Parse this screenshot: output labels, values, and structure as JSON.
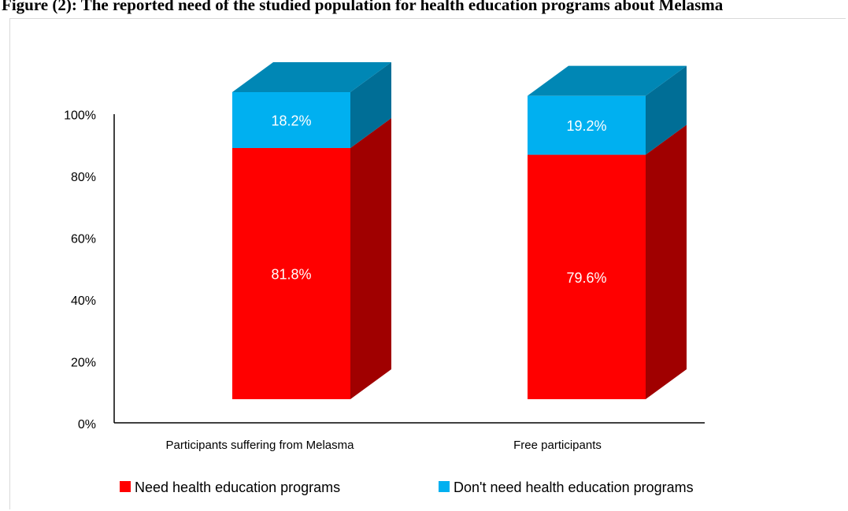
{
  "caption": "Figure (2): The reported need of the studied population for health education programs about Melasma",
  "chart_data": {
    "type": "bar",
    "stacked": true,
    "three_d": true,
    "categories": [
      "Participants suffering from Melasma",
      "Free participants"
    ],
    "series": [
      {
        "name": "Need health education programs",
        "values": [
          81.8,
          79.6
        ],
        "labels": [
          "81.8%",
          "79.6%"
        ],
        "color": "#ff0000",
        "side_color": "#a00000"
      },
      {
        "name": "Don't need health education programs",
        "values": [
          18.2,
          19.2
        ],
        "labels": [
          "18.2%",
          "19.2%"
        ],
        "color": "#00b0f0",
        "side_color": "#006e96",
        "top_color": "#0087b5"
      }
    ],
    "yticks": [
      "0%",
      "20%",
      "40%",
      "60%",
      "80%",
      "100%"
    ],
    "ylim": [
      0,
      100
    ],
    "legend_position": "bottom",
    "grid": false
  }
}
